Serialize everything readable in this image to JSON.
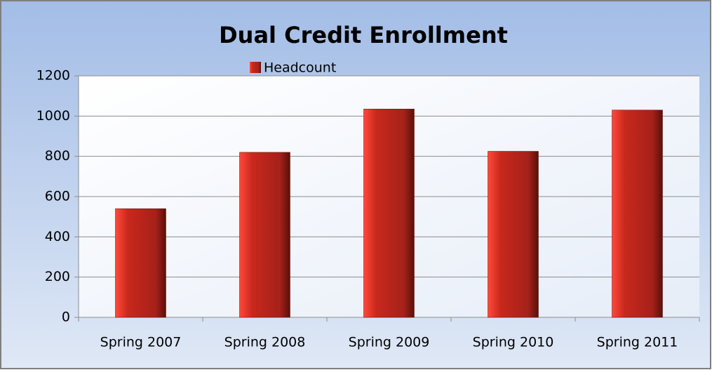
{
  "chart_data": {
    "type": "bar",
    "title": "Dual Credit Enrollment",
    "categories": [
      "Spring 2007",
      "Spring 2008",
      "Spring 2009",
      "Spring 2010",
      "Spring 2011"
    ],
    "series": [
      {
        "name": "Headcount",
        "color": "#b8261c",
        "values": [
          540,
          820,
          1035,
          825,
          1030
        ]
      }
    ],
    "ylim": [
      0,
      1200
    ],
    "yticks": [
      0,
      200,
      400,
      600,
      800,
      1000,
      1200
    ],
    "grid": true,
    "legend": "top"
  }
}
